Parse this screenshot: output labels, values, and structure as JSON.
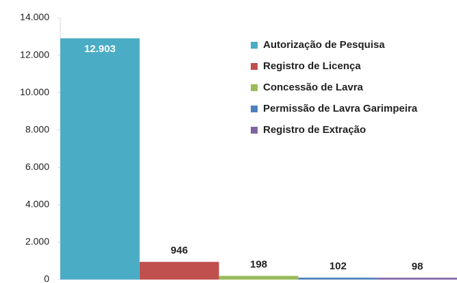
{
  "chart_data": {
    "type": "bar",
    "categories": [
      "Autorização de Pesquisa",
      "Registro de Licença",
      "Concessão de Lavra",
      "Permissão de Lavra Garimpeira",
      "Registro de Extração"
    ],
    "values": [
      12903,
      946,
      198,
      102,
      98
    ],
    "value_labels": [
      "12.903",
      "946",
      "198",
      "102",
      "98"
    ],
    "colors": [
      "#4bacc6",
      "#c0504d",
      "#9bbb59",
      "#4f81bd",
      "#8064a2"
    ],
    "ylim": [
      0,
      14000
    ],
    "yticks": [
      0,
      {
        "value": 2000,
        "label": "2.000"
      },
      {
        "value": 4000,
        "label": "4.000"
      },
      {
        "value": 6000,
        "label": "6.000"
      },
      {
        "value": 8000,
        "label": "8.000"
      },
      {
        "value": 10000,
        "label": "10.000"
      },
      {
        "value": 12000,
        "label": "12.000"
      },
      {
        "value": 14000,
        "label": "14.000"
      }
    ],
    "grid": false,
    "legend": "upper right"
  }
}
